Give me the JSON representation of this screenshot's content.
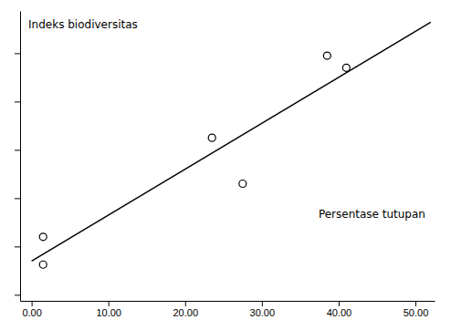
{
  "chart_data": {
    "type": "scatter",
    "x_label": "Persentase tutupan",
    "y_label": "Indeks biodiversitas",
    "series": [
      {
        "type": "line",
        "x": [
          0,
          52
        ],
        "values": [
          0.08,
          2.056
        ],
        "color": "#000000"
      },
      {
        "type": "scatter",
        "x": [
          1.5,
          1.5,
          23.5,
          27.5,
          38.5,
          41.0
        ],
        "values": [
          0.28,
          0.05,
          1.1,
          0.72,
          1.78,
          1.68
        ],
        "color": "#000000",
        "marker": "circle"
      }
    ],
    "xlim": [
      -1.5,
      52.5
    ],
    "ylim": [
      -0.25,
      2.15
    ],
    "xticks": [
      {
        "value": 0,
        "label": "0.00"
      },
      {
        "value": 10,
        "label": "10.00"
      },
      {
        "value": 20,
        "label": "20.00"
      },
      {
        "value": 30,
        "label": "30.00"
      },
      {
        "value": 40,
        "label": "40.00"
      },
      {
        "value": 50,
        "label": "50.00"
      }
    ],
    "yticks": [
      -0.2,
      0.2,
      0.6,
      1.0,
      1.4,
      1.8
    ],
    "tick_labels": "x",
    "grid": false
  }
}
